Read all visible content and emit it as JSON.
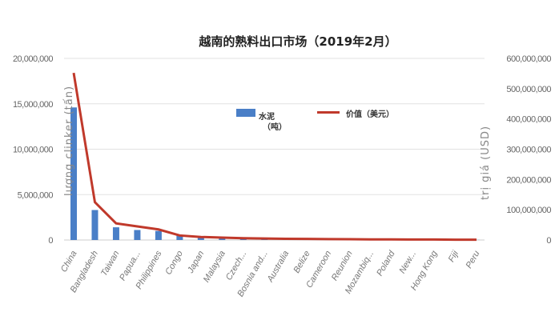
{
  "chart_data": {
    "type": "bar+line",
    "title": "越南的熟料出口市场（2019年2月）",
    "ylabel_left": "lượng clinker (tấn)",
    "ylabel_right": "trị giá (USD)",
    "ylim_left": [
      0,
      20000000
    ],
    "ylim_right": [
      0,
      600000000
    ],
    "yticks_left": [
      "0",
      "5,000,000",
      "10,000,000",
      "15,000,000",
      "20,000,000"
    ],
    "yticks_right": [
      "0",
      "100,000,000",
      "200,000,000",
      "300,000,000",
      "400,000,000",
      "500,000,000",
      "600,000,000"
    ],
    "grid": true,
    "legend_position": "center",
    "categories": [
      "China",
      "Bangladesh",
      "Taiwan",
      "Papua...",
      "Philippines",
      "Congo",
      "Japan",
      "Malaysia",
      "Czech...",
      "Bosnia and...",
      "Australia",
      "Belize",
      "Cameroon",
      "Reunion",
      "Mozambiq...",
      "Poland",
      "New...",
      "Hong Kong",
      "Fiji",
      "Peru"
    ],
    "series": [
      {
        "name": "水泥（吨）",
        "type": "bar",
        "axis": "left",
        "color": "#4a7fc7",
        "values": [
          14600000,
          3300000,
          1400000,
          1100000,
          1000000,
          500000,
          250000,
          200000,
          150000,
          120000,
          100000,
          80000,
          60000,
          50000,
          40000,
          30000,
          25000,
          20000,
          15000,
          10000
        ]
      },
      {
        "name": "价值（美元）",
        "type": "line",
        "axis": "right",
        "color": "#c0392b",
        "values": [
          552000000,
          125000000,
          55000000,
          45000000,
          35000000,
          15000000,
          10000000,
          8000000,
          6000000,
          5000000,
          4000000,
          3500000,
          3000000,
          2500000,
          2000000,
          2000000,
          1500000,
          1500000,
          1000000,
          1000000
        ]
      }
    ],
    "legend": {
      "bar_label": "水泥",
      "bar_label2": "（吨）",
      "line_label": "价值（美元）"
    }
  }
}
